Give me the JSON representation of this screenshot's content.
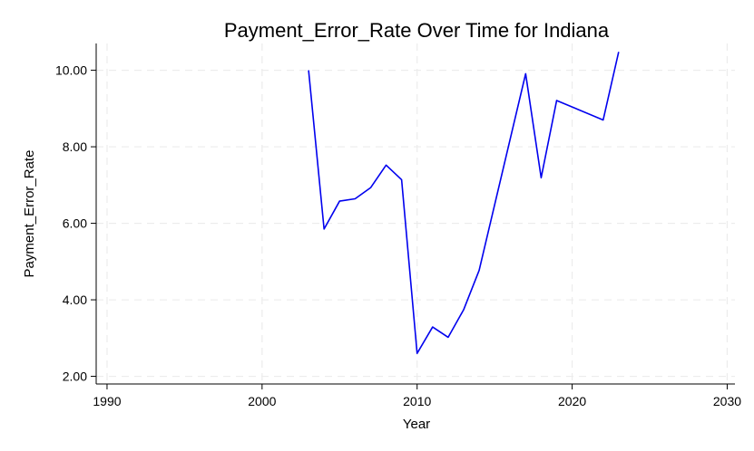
{
  "chart_data": {
    "type": "line",
    "title": "Payment_Error_Rate Over Time for Indiana",
    "xlabel": "Year",
    "ylabel": "Payment_Error_Rate",
    "xlim": [
      1989.3,
      2030.5
    ],
    "ylim": [
      1.8,
      10.7
    ],
    "xticks": [
      1990,
      2000,
      2010,
      2020,
      2030
    ],
    "yticks": [
      2,
      4,
      6,
      8,
      10
    ],
    "ytick_labels": [
      "2.00",
      "4.00",
      "6.00",
      "8.00",
      "10.00"
    ],
    "grid": true,
    "line_color": "#0000ee",
    "series": [
      {
        "x": [
          2003,
          2004,
          2005,
          2006,
          2007,
          2008,
          2009,
          2010,
          2011,
          2012,
          2013,
          2014,
          2017,
          2018,
          2019,
          2022,
          2023
        ],
        "values": [
          10.0,
          5.85,
          6.58,
          6.64,
          6.93,
          7.52,
          7.14,
          2.6,
          3.29,
          3.02,
          3.74,
          4.77,
          9.91,
          7.19,
          9.21,
          8.7,
          10.48
        ]
      }
    ]
  }
}
